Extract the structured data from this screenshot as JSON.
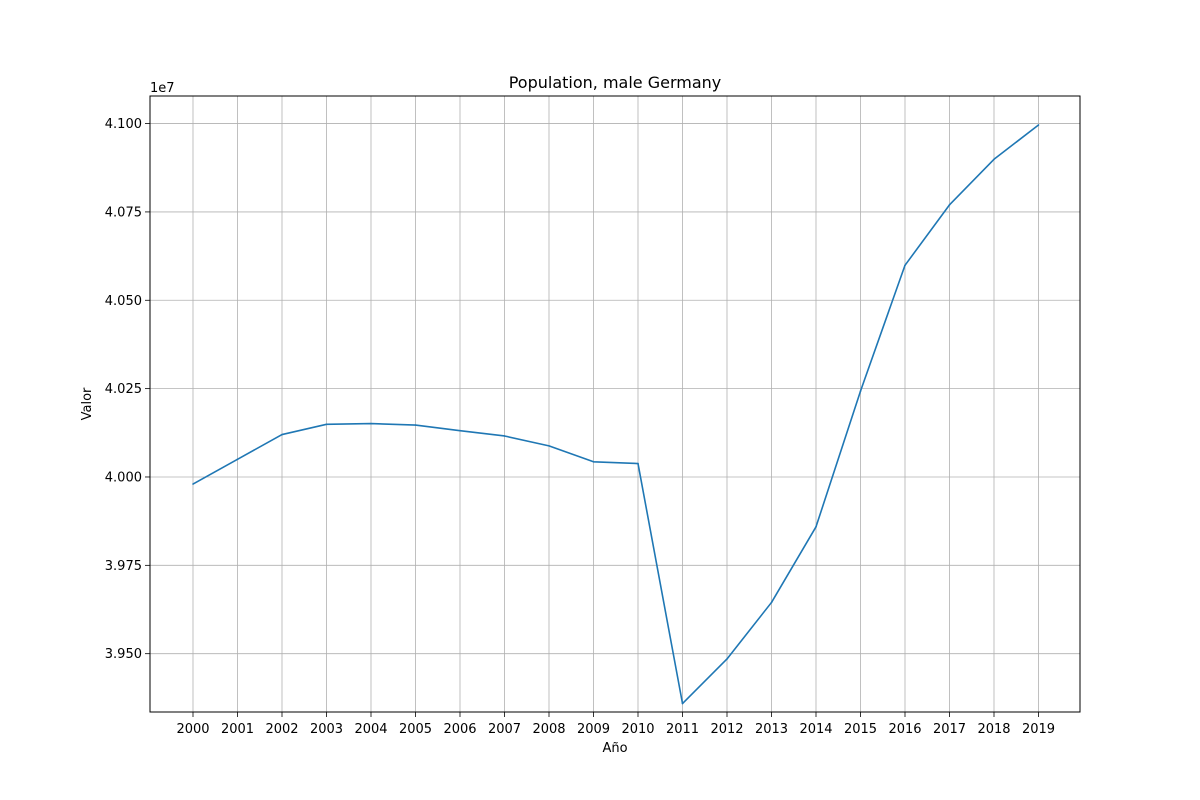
{
  "chart_data": {
    "type": "line",
    "title": "Population, male Germany",
    "xlabel": "Año",
    "ylabel": "Valor",
    "y_offset_label": "1e7",
    "grid": true,
    "legend": "none",
    "x": [
      "2000",
      "2001",
      "2002",
      "2003",
      "2004",
      "2005",
      "2006",
      "2007",
      "2008",
      "2009",
      "2010",
      "2011",
      "2012",
      "2013",
      "2014",
      "2015",
      "2016",
      "2017",
      "2018",
      "2019"
    ],
    "series": [
      {
        "color": "#1f77b4",
        "values": [
          39980000,
          40050000,
          40120000,
          40149000,
          40151000,
          40147000,
          40131000,
          40116000,
          40088000,
          40043000,
          40038000,
          39359000,
          39485000,
          39645000,
          39859000,
          40243000,
          40599000,
          40770000,
          40899000,
          40996000
        ]
      }
    ],
    "ylim": [
      39335000,
      41078000
    ],
    "y_ticks": [
      39500000,
      39750000,
      40000000,
      40250000,
      40500000,
      40750000,
      41000000
    ],
    "y_tick_labels": [
      "3.950",
      "3.975",
      "4.000",
      "4.025",
      "4.050",
      "4.075",
      "4.100"
    ]
  }
}
